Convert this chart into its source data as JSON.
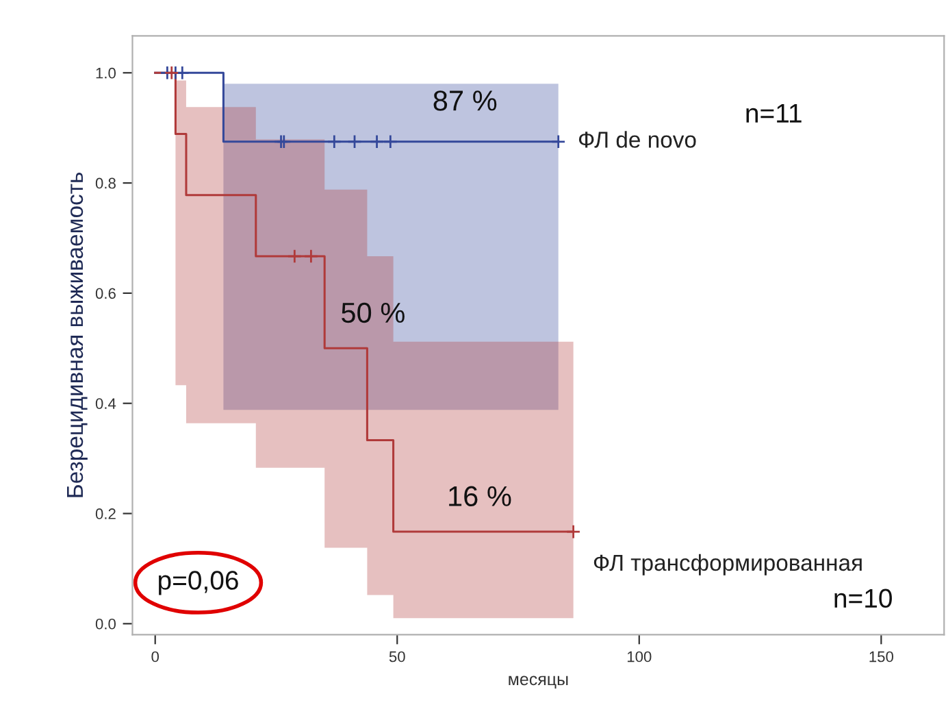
{
  "chart_data": {
    "type": "step",
    "xlabel": "месяцы",
    "ylabel": "Безрецидивная выживаемость",
    "xlim": [
      -4.7,
      163
    ],
    "ylim": [
      -0.02,
      1.067
    ],
    "xticks": [
      0,
      50,
      100,
      150
    ],
    "yticks": [
      {
        "value": 0,
        "label": "0.0"
      },
      {
        "value": 0.2,
        "label": "0.2"
      },
      {
        "value": 0.4,
        "label": "0.4"
      },
      {
        "value": 0.6,
        "label": "0.6"
      },
      {
        "value": 0.8,
        "label": "0.8"
      },
      {
        "value": 1,
        "label": "1.0"
      }
    ],
    "grid": false,
    "marker": "none",
    "line_style": "solid",
    "series": [
      {
        "name": "ФЛ de novo",
        "color": "#34489a",
        "x": [
          0,
          14.1,
          83.3
        ],
        "values": [
          1,
          0.875,
          0.875
        ],
        "lower": [
          null,
          0.388,
          0.388
        ],
        "upper": [
          null,
          0.98,
          0.98
        ]
      },
      {
        "name": "ФЛ трансформированная",
        "color": "#b03a3a",
        "x": [
          0,
          4.2,
          6.4,
          20.8,
          35,
          43.8,
          49.2,
          86.4
        ],
        "values": [
          1,
          0.889,
          0.778,
          0.667,
          0.5,
          0.333,
          0.167,
          0.167
        ],
        "lower": [
          null,
          0.433,
          0.364,
          0.283,
          0.138,
          0.052,
          0.01,
          0.01
        ],
        "upper": [
          null,
          0.986,
          0.938,
          0.879,
          0.788,
          0.667,
          0.512,
          0.512
        ]
      },
      {
        "type": "scatter",
        "marker": "cross",
        "color": "#34489a",
        "x": [
          2.5,
          4.2,
          5.6,
          26.0,
          26.6,
          37.0,
          41.2,
          45.8,
          48.6,
          83.3
        ],
        "values": [
          1,
          1,
          1,
          0.875,
          0.875,
          0.875,
          0.875,
          0.875,
          0.875,
          0.875
        ]
      },
      {
        "type": "scatter",
        "marker": "cross",
        "color": "#b03a3a",
        "x": [
          3.4,
          28.8,
          32.2,
          86.4
        ],
        "values": [
          1,
          0.667,
          0.667,
          0.167
        ]
      }
    ],
    "annotations": [
      {
        "text": "87 %",
        "x": 64,
        "y": 0.875
      },
      {
        "text": "50 %",
        "x": 45,
        "y": 0.5
      },
      {
        "text": "16 %",
        "x": 67,
        "y": 0.167
      },
      "n=11",
      "n=10",
      "p=0,06"
    ]
  }
}
